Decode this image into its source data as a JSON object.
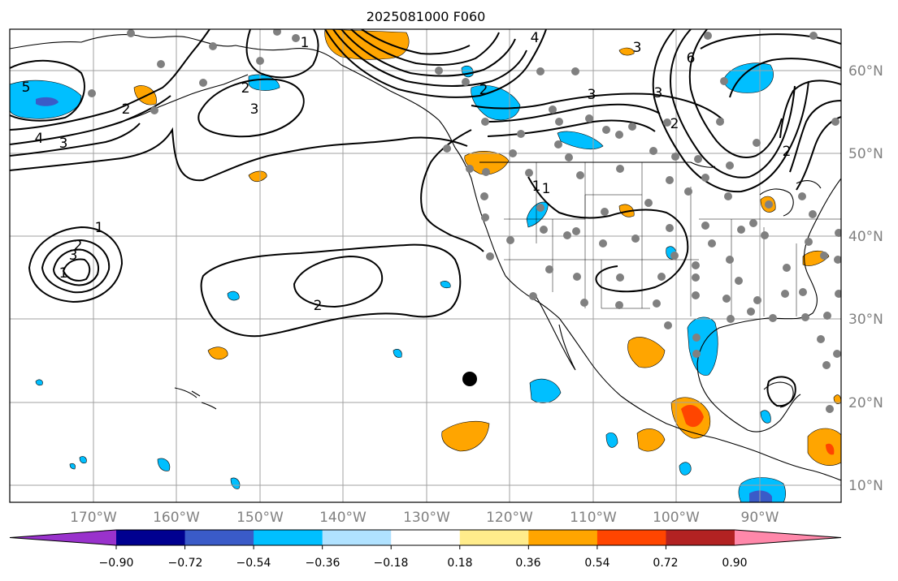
{
  "title": "2025081000 F060",
  "colors": {
    "grid": "#a0a0a0",
    "coast": "#000000",
    "contour": "#000000",
    "station": "#808080",
    "marker": "#000000",
    "axis_label": "#808080"
  },
  "lon_labels": [
    "170°W",
    "160°W",
    "150°W",
    "140°W",
    "130°W",
    "120°W",
    "110°W",
    "100°W",
    "90°W"
  ],
  "lat_labels": [
    "60°N",
    "50°N",
    "40°N",
    "30°N",
    "20°N",
    "10°N"
  ],
  "colorbar": {
    "colors": [
      "#9932cc",
      "#000090",
      "#3a5bc8",
      "#00bfff",
      "#b0e2ff",
      "#ffffff",
      "#ffec8b",
      "#ffa500",
      "#ff4500",
      "#b22222",
      "#ff88aa"
    ],
    "tick_labels": [
      "−0.90",
      "−0.72",
      "−0.54",
      "−0.36",
      "−0.18",
      "0.18",
      "0.36",
      "0.54",
      "0.72",
      "0.90"
    ]
  },
  "contour_labels": [
    {
      "text": "5"
    },
    {
      "text": "2"
    },
    {
      "text": "4"
    },
    {
      "text": "3"
    },
    {
      "text": "2"
    },
    {
      "text": "3"
    },
    {
      "text": "1"
    },
    {
      "text": "2"
    },
    {
      "text": "1"
    },
    {
      "text": "4"
    },
    {
      "text": "3"
    },
    {
      "text": "3"
    },
    {
      "text": "3"
    },
    {
      "text": "6"
    },
    {
      "text": "2"
    },
    {
      "text": "2"
    },
    {
      "text": "1"
    },
    {
      "text": "2"
    },
    {
      "text": "3"
    },
    {
      "text": "1"
    },
    {
      "text": "2"
    },
    {
      "text": "1"
    }
  ]
}
